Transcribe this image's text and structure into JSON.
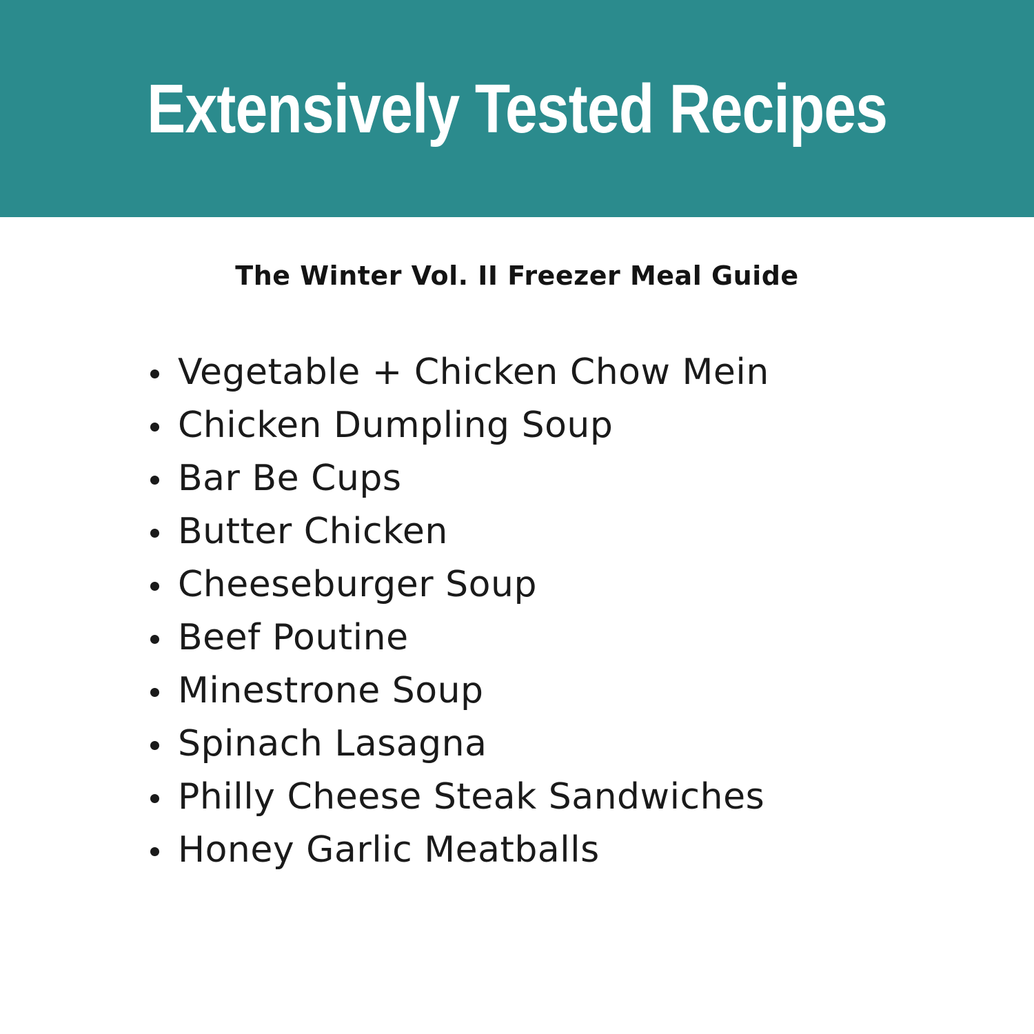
{
  "header": {
    "title": "Extensively Tested Recipes"
  },
  "content": {
    "subtitle": "The Winter Vol. II Freezer Meal Guide",
    "recipes": [
      "Vegetable + Chicken Chow Mein",
      "Chicken Dumpling Soup",
      "Bar Be Cups",
      "Butter Chicken",
      "Cheeseburger Soup",
      "Beef Poutine",
      "Minestrone Soup",
      "Spinach Lasagna",
      "Philly Cheese Steak Sandwiches",
      "Honey Garlic Meatballs"
    ]
  },
  "colors": {
    "banner_background": "#2b8b8d",
    "title_text": "#ffffff",
    "body_text": "#1a1a1a",
    "page_background": "#ffffff"
  }
}
